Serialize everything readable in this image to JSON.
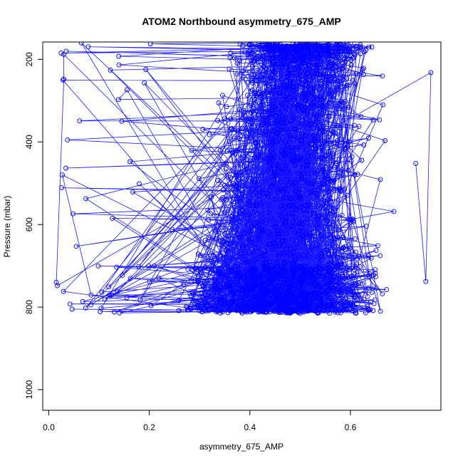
{
  "chart_data": {
    "type": "scatter",
    "title": "ATOM2 Northbound asymmetry_675_AMP",
    "xlabel": "asymmetry_675_AMP",
    "ylabel": "Pressure (mbar)",
    "xlim": [
      -0.012,
      0.78
    ],
    "ylim": [
      1050,
      158
    ],
    "y_reversed": true,
    "x_ticks": [
      0.0,
      0.2,
      0.4,
      0.6
    ],
    "x_tick_labels": [
      "0.0",
      "0.2",
      "0.4",
      "0.6"
    ],
    "y_ticks": [
      200,
      400,
      600,
      800,
      1000
    ],
    "y_tick_labels": [
      "200",
      "400",
      "600",
      "800",
      "1000"
    ],
    "grid": false,
    "legend": "none",
    "style": "points-connected",
    "series_color": "#0000ff",
    "point_count": 2600,
    "x_range_data": [
      0.015,
      0.76
    ],
    "y_range_data": [
      160,
      815
    ]
  }
}
